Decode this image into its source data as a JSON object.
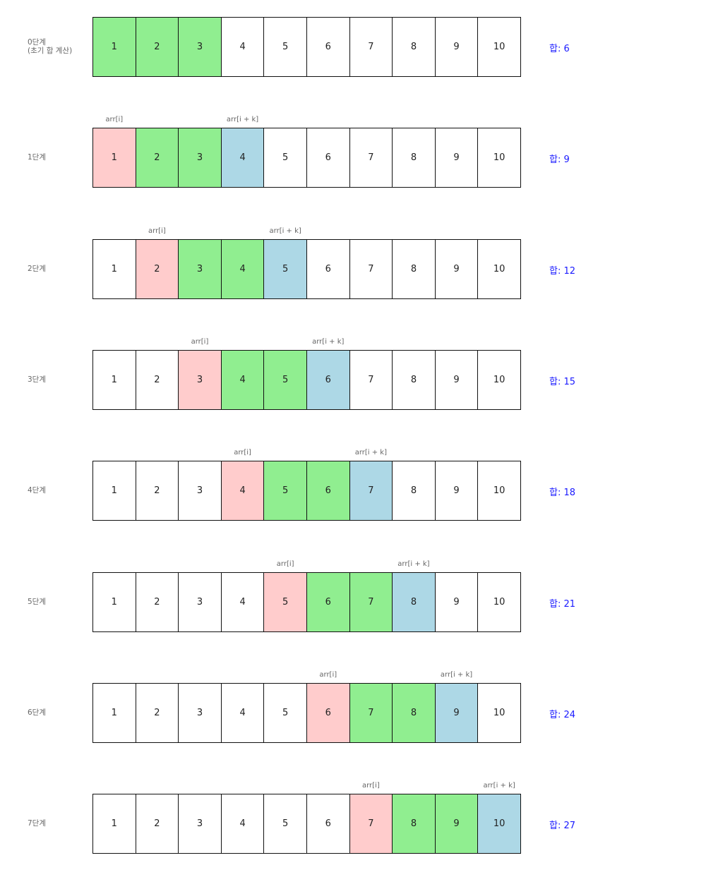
{
  "pointer_labels": {
    "out": "arr[i]",
    "in": "arr[i + k]"
  },
  "colors": {
    "window": "#90ee90",
    "out": "#ffcccc",
    "in": "#add8e6",
    "sum": "#1a1aff"
  },
  "steps": [
    {
      "label": "0단계\n(초기 합 계산)",
      "values": [
        1,
        2,
        3,
        4,
        5,
        6,
        7,
        8,
        9,
        10
      ],
      "window": [
        0,
        1,
        2
      ],
      "out": null,
      "in": null,
      "sum": "합: 6"
    },
    {
      "label": "1단계",
      "values": [
        1,
        2,
        3,
        4,
        5,
        6,
        7,
        8,
        9,
        10
      ],
      "window": [
        1,
        2
      ],
      "out": 0,
      "in": 3,
      "sum": "합: 9"
    },
    {
      "label": "2단계",
      "values": [
        1,
        2,
        3,
        4,
        5,
        6,
        7,
        8,
        9,
        10
      ],
      "window": [
        2,
        3
      ],
      "out": 1,
      "in": 4,
      "sum": "합: 12"
    },
    {
      "label": "3단계",
      "values": [
        1,
        2,
        3,
        4,
        5,
        6,
        7,
        8,
        9,
        10
      ],
      "window": [
        3,
        4
      ],
      "out": 2,
      "in": 5,
      "sum": "합: 15"
    },
    {
      "label": "4단계",
      "values": [
        1,
        2,
        3,
        4,
        5,
        6,
        7,
        8,
        9,
        10
      ],
      "window": [
        4,
        5
      ],
      "out": 3,
      "in": 6,
      "sum": "합: 18"
    },
    {
      "label": "5단계",
      "values": [
        1,
        2,
        3,
        4,
        5,
        6,
        7,
        8,
        9,
        10
      ],
      "window": [
        5,
        6
      ],
      "out": 4,
      "in": 7,
      "sum": "합: 21"
    },
    {
      "label": "6단계",
      "values": [
        1,
        2,
        3,
        4,
        5,
        6,
        7,
        8,
        9,
        10
      ],
      "window": [
        6,
        7
      ],
      "out": 5,
      "in": 8,
      "sum": "합: 24"
    },
    {
      "label": "7단계",
      "values": [
        1,
        2,
        3,
        4,
        5,
        6,
        7,
        8,
        9,
        10
      ],
      "window": [
        7,
        8
      ],
      "out": 6,
      "in": 9,
      "sum": "합: 27"
    }
  ]
}
